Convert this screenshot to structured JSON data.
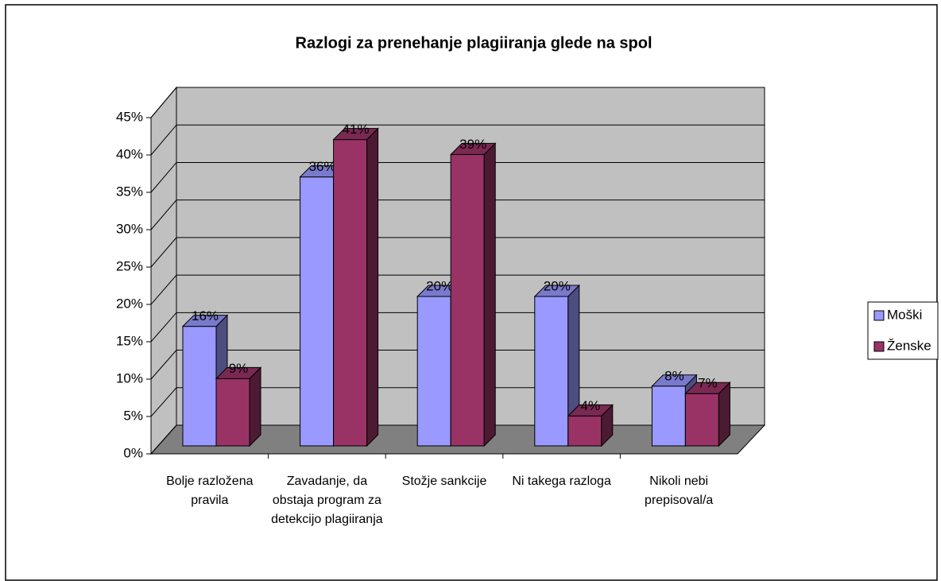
{
  "chart_data": {
    "type": "bar3d",
    "title": "Razlogi za prenehanje plagiiranja glede na spol",
    "categories": [
      "Bolje razložena pravila",
      "Zavadanje, da obstaja program za detekcijo plagiiranja",
      "Stožje sankcije",
      "Ni takega razloga",
      "Nikoli nebi prepisoval/a"
    ],
    "series": [
      {
        "name": "Moški",
        "color": "#9999ff",
        "values": [
          16,
          36,
          20,
          20,
          8
        ],
        "value_labels": [
          "16%",
          "36%",
          "20%",
          "20%",
          "8%"
        ]
      },
      {
        "name": "Ženske",
        "color": "#993366",
        "values": [
          9,
          41,
          39,
          4,
          7
        ],
        "value_labels": [
          "9%",
          "41%",
          "39%",
          "4%",
          "7%"
        ]
      }
    ],
    "ylim": [
      0,
      45
    ],
    "yticks": [
      {
        "value": 0,
        "label": "0%"
      },
      {
        "value": 5,
        "label": "5%"
      },
      {
        "value": 10,
        "label": "10%"
      },
      {
        "value": 15,
        "label": "15%"
      },
      {
        "value": 20,
        "label": "20%"
      },
      {
        "value": 25,
        "label": "25%"
      },
      {
        "value": 30,
        "label": "30%"
      },
      {
        "value": 35,
        "label": "35%"
      },
      {
        "value": 40,
        "label": "40%"
      },
      {
        "value": 45,
        "label": "45%"
      }
    ],
    "grid": true,
    "legend": "right"
  }
}
